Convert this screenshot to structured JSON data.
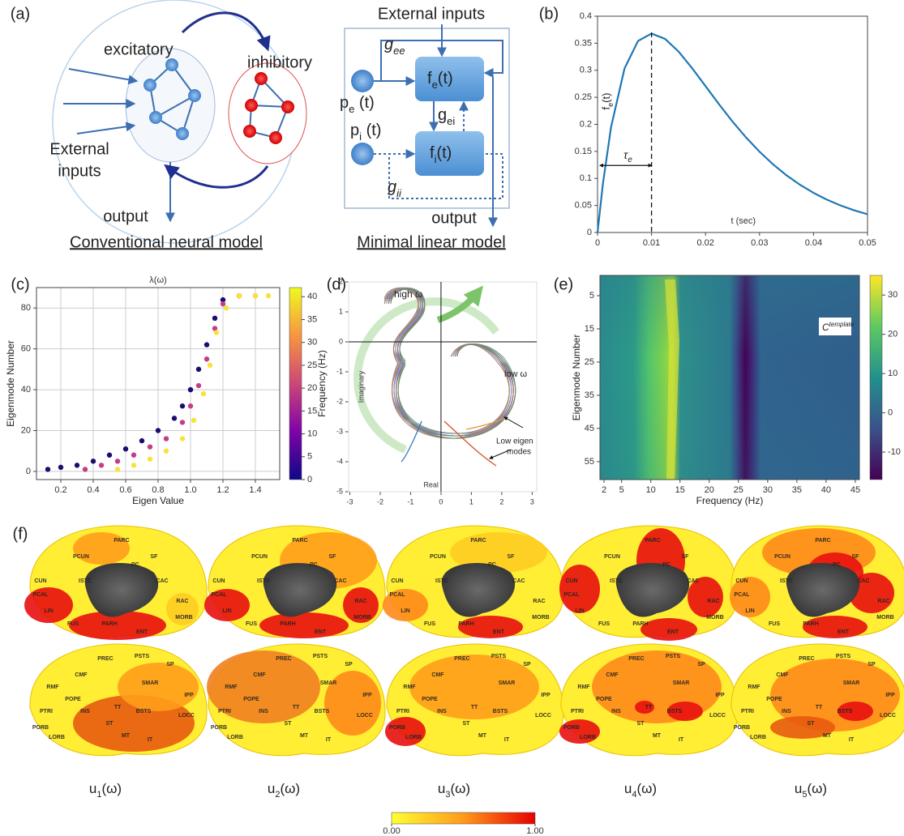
{
  "panel_labels": [
    "(a)",
    "(b)",
    "(c)",
    "(d)",
    "(e)",
    "(f)"
  ],
  "a": {
    "excitatory": "excitatory",
    "inhibitory": "inhibitory",
    "external_inputs": [
      "External",
      "inputs"
    ],
    "output": "output",
    "caption": "Conventional neural model",
    "ext": "External inputs",
    "g_ee": [
      "g",
      "ee"
    ],
    "p_e": [
      "p",
      "e",
      " (t)"
    ],
    "f_e": [
      "f",
      "e",
      "(t)"
    ],
    "g_ei": [
      "g",
      "ei"
    ],
    "p_i": [
      "p",
      "i",
      " (t)"
    ],
    "f_i": [
      "f",
      "i",
      "(t)"
    ],
    "g_ii": [
      "g",
      "ii"
    ],
    "output2": "output",
    "caption2": "Minimal linear model"
  },
  "chart_data": [
    {
      "type": "line",
      "x": [
        0,
        0.001,
        0.0025,
        0.005,
        0.0075,
        0.01,
        0.0125,
        0.015,
        0.0175,
        0.02,
        0.0225,
        0.025,
        0.0275,
        0.03,
        0.0325,
        0.035,
        0.0375,
        0.04,
        0.0425,
        0.045,
        0.0475,
        0.05
      ],
      "series": [
        {
          "color": "#1f77b4",
          "values": [
            0,
            0.0905,
            0.1947,
            0.3033,
            0.3543,
            0.3679,
            0.3581,
            0.3347,
            0.3041,
            0.2707,
            0.2371,
            0.2052,
            0.1758,
            0.1494,
            0.1261,
            0.1057,
            0.0882,
            0.0733,
            0.0606,
            0.05,
            0.0411,
            0.0337
          ]
        }
      ],
      "xlim": [
        0,
        0.05
      ],
      "ylim": [
        0,
        0.4
      ],
      "xticks": [
        0,
        0.01,
        0.02,
        0.03,
        0.04,
        0.05
      ],
      "yticks": [
        0,
        0.05,
        0.1,
        0.15,
        0.2,
        0.25,
        0.3,
        0.35,
        0.4
      ],
      "ylabel": [
        "f",
        "e",
        "(t)"
      ],
      "xlabel": "t (sec)",
      "annotation": [
        "τ",
        "e"
      ],
      "marker_x": 0.01
    },
    {
      "type": "scatter",
      "title": "λ(ω)",
      "xlabel": "Eigen Value",
      "ylabel": "Eigenmode Number",
      "xlim": [
        0.05,
        1.55
      ],
      "ylim": [
        -4,
        90
      ],
      "xticks": [
        0.2,
        0.4,
        0.6,
        0.8,
        {
          "value": 1,
          "label": "1.0"
        },
        1.2,
        1.4
      ],
      "yticks": [
        0,
        20,
        40,
        60,
        80
      ],
      "grid": true,
      "series": [
        {
          "color": "#1b0c6e",
          "x": [
            0.12,
            0.2,
            0.3,
            0.4,
            0.5,
            0.6,
            0.7,
            0.8,
            0.9,
            0.95,
            1.0,
            1.05,
            1.1,
            1.15,
            1.2,
            1.3
          ],
          "values": [
            1,
            2,
            3,
            5,
            8,
            11,
            15,
            20,
            26,
            32,
            40,
            50,
            62,
            75,
            84,
            86
          ]
        },
        {
          "color": "#c43d8a",
          "x": [
            0.35,
            0.45,
            0.55,
            0.65,
            0.75,
            0.85,
            0.95,
            1.0,
            1.05,
            1.1,
            1.15,
            1.2,
            1.3,
            1.4
          ],
          "values": [
            1,
            3,
            5,
            8,
            12,
            16,
            24,
            32,
            42,
            55,
            70,
            82,
            86,
            86
          ]
        },
        {
          "color": "#f6e33d",
          "x": [
            0.55,
            0.65,
            0.75,
            0.85,
            0.95,
            1.02,
            1.08,
            1.12,
            1.16,
            1.22,
            1.3,
            1.4,
            1.48
          ],
          "values": [
            1,
            3,
            6,
            10,
            16,
            25,
            38,
            52,
            68,
            80,
            86,
            86,
            86
          ]
        }
      ],
      "colorbar": {
        "label": "Frequency (Hz)",
        "lim": [
          0,
          42
        ],
        "ticks": [
          0,
          5,
          10,
          15,
          20,
          25,
          30,
          35,
          40
        ]
      }
    },
    {
      "type": "complex-plane",
      "xlim": [
        -3.04,
        3.15
      ],
      "ylim": [
        -5,
        2
      ],
      "xticks": [
        -3,
        -2,
        -1,
        0,
        1,
        2,
        3
      ],
      "yticks": [
        -5,
        -4,
        -3,
        -2,
        -1,
        0,
        1,
        2
      ],
      "xlabel": "Real",
      "ylabel": "Imaginary",
      "high": "high ω",
      "low": "low ω",
      "note": [
        "Low eigen",
        "modes"
      ]
    },
    {
      "type": "heatmap",
      "xlabel": "Frequency (Hz)",
      "ylabel": "Eigenmode Number",
      "xlim": [
        1.3,
        45.7
      ],
      "ylim": [
        -1.1,
        60.4
      ],
      "y_inverted": true,
      "xticks": [
        2,
        5,
        10,
        15,
        20,
        25,
        30,
        35,
        40,
        45
      ],
      "yticks": [
        5,
        15,
        25,
        35,
        45,
        55
      ],
      "annotation": [
        "C",
        "template"
      ],
      "colorbar": {
        "lim": [
          -17,
          35
        ],
        "ticks": [
          -10,
          0,
          10,
          20,
          30
        ]
      }
    }
  ],
  "f": {
    "medial_regions": [
      "PARC",
      "PCUN",
      "SF",
      "CUN",
      "ISTC",
      "CAC",
      "PC",
      "PCAL",
      "LIN",
      "FUS",
      "PARH",
      "ENT",
      "RAC",
      "MORB"
    ],
    "lateral_regions": [
      "PREC",
      "PSTS",
      "SP",
      "CMF",
      "SMAR",
      "RMF",
      "POPE",
      "PTRI",
      "INS",
      "TT",
      "BSTS",
      "IPP",
      "LOCC",
      "PORB",
      "ST",
      "MT",
      "LORB",
      "IT"
    ],
    "mode_labels": [
      [
        "u",
        "1",
        "(ω)"
      ],
      [
        "u",
        "2",
        "(ω)"
      ],
      [
        "u",
        "3",
        "(ω)"
      ],
      [
        "u",
        "4",
        "(ω)"
      ],
      [
        "u",
        "5",
        "(ω)"
      ]
    ],
    "colorbar": {
      "lim": [
        0,
        1
      ],
      "ticks": [
        {
          "value": 0,
          "label": "0.00"
        },
        {
          "value": 1,
          "label": "1.00"
        }
      ]
    }
  }
}
